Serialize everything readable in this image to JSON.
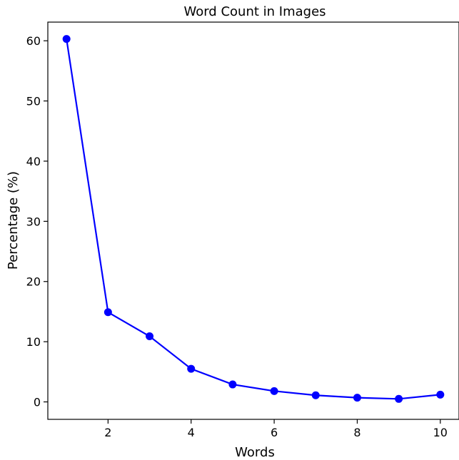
{
  "chart_data": {
    "type": "line",
    "title": "Word Count in Images",
    "xlabel": "Words",
    "ylabel": "Percentage (%)",
    "xlim": [
      0.55,
      10.45
    ],
    "ylim": [
      -2.9,
      63.1
    ],
    "xticks": [
      2,
      4,
      6,
      8,
      10
    ],
    "yticks": [
      0,
      10,
      20,
      30,
      40,
      50,
      60
    ],
    "grid": false,
    "legend": "none",
    "series": [
      {
        "color": "#0000ff",
        "marker": "circle",
        "x": [
          1,
          2,
          3,
          4,
          5,
          6,
          7,
          8,
          9,
          10
        ],
        "y": [
          60.3,
          14.9,
          10.9,
          5.5,
          2.9,
          1.8,
          1.1,
          0.7,
          0.5,
          1.2
        ]
      }
    ]
  }
}
